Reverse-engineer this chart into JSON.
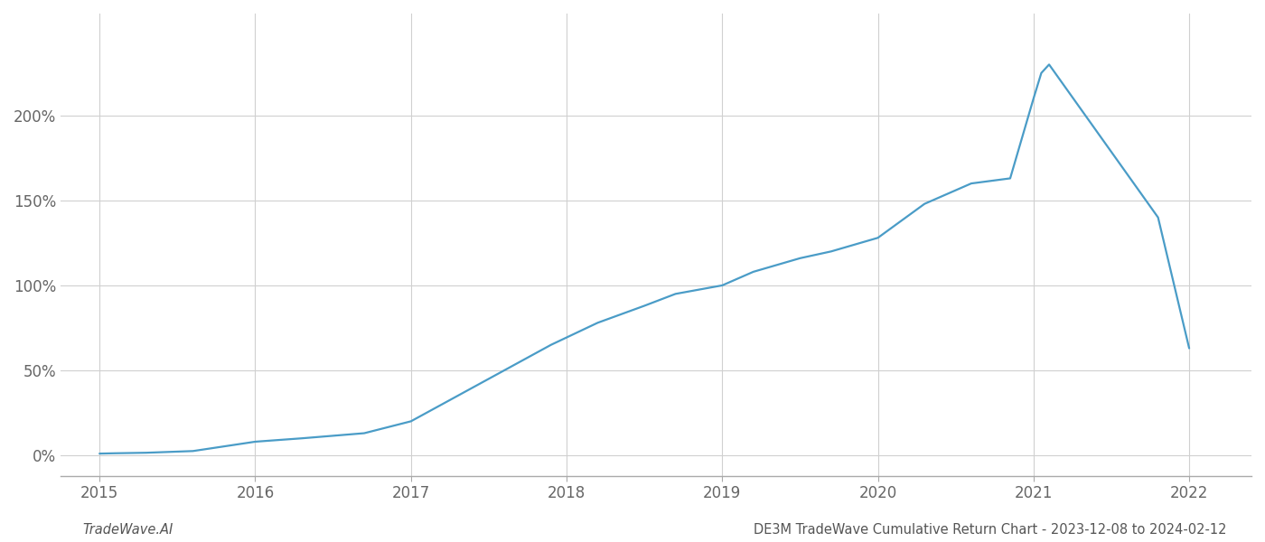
{
  "x_values": [
    2015.0,
    2015.1,
    2015.3,
    2015.6,
    2016.0,
    2016.3,
    2016.5,
    2016.7,
    2017.0,
    2017.3,
    2017.6,
    2017.9,
    2018.2,
    2018.5,
    2018.7,
    2019.0,
    2019.2,
    2019.5,
    2019.7,
    2020.0,
    2020.3,
    2020.6,
    2020.85,
    2021.0,
    2021.05,
    2021.1,
    2021.8,
    2022.0
  ],
  "y_values": [
    1.0,
    1.2,
    1.5,
    2.5,
    8.0,
    10.0,
    11.5,
    13.0,
    20.0,
    35.0,
    50.0,
    65.0,
    78.0,
    88.0,
    95.0,
    100.0,
    108.0,
    116.0,
    120.0,
    128.0,
    148.0,
    160.0,
    163.0,
    210.0,
    225.0,
    230.0,
    140.0,
    63.0
  ],
  "line_color": "#4a9cc7",
  "line_width": 1.6,
  "background_color": "#ffffff",
  "grid_color": "#d0d0d0",
  "x_ticks": [
    2015,
    2016,
    2017,
    2018,
    2019,
    2020,
    2021,
    2022
  ],
  "y_ticks": [
    0,
    50,
    100,
    150,
    200
  ],
  "y_tick_labels": [
    "0%",
    "50%",
    "100%",
    "150%",
    "200%"
  ],
  "xlim": [
    2014.75,
    2022.4
  ],
  "ylim": [
    -12,
    260
  ],
  "footer_left": "TradeWave.AI",
  "footer_right": "DE3M TradeWave Cumulative Return Chart - 2023-12-08 to 2024-02-12",
  "footer_fontsize": 10.5,
  "tick_fontsize": 12,
  "axis_color": "#666666",
  "footer_color": "#555555"
}
